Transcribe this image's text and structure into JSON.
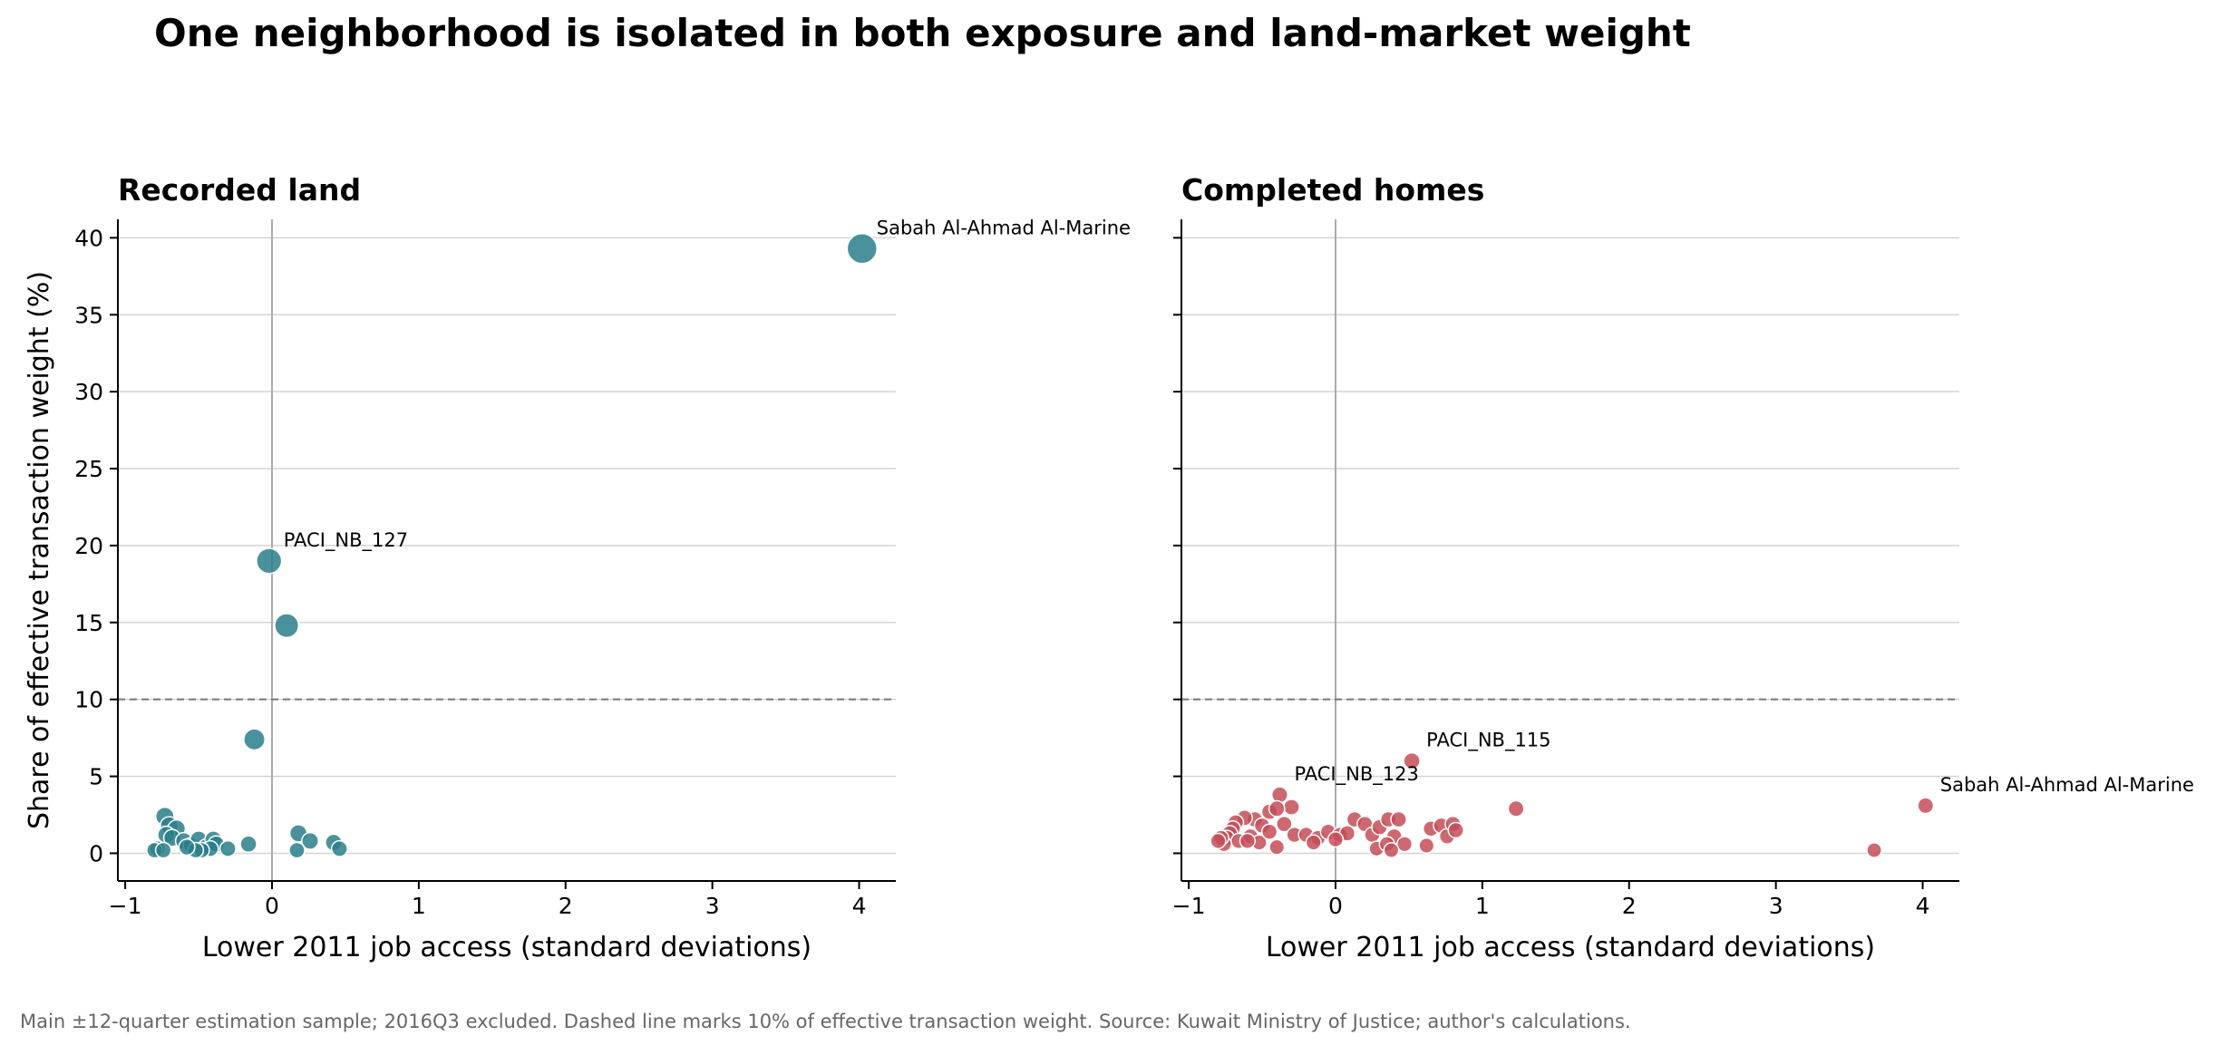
{
  "title": "One neighborhood is isolated in both exposure and land-market weight",
  "footnote": "Main ±12-quarter estimation sample; 2016Q3 excluded. Dashed line marks 10% of effective transaction weight. Source: Kuwait Ministry of Justice; author's calculations.",
  "ylabel": "Share of effective transaction weight (%)",
  "colors": {
    "land": "#2a7f8a",
    "homes": "#c44e58",
    "grid": "#d4d4d4",
    "zero_line": "#aaaaaa",
    "threshold": "#777777"
  },
  "chart_data": [
    {
      "type": "scatter",
      "title": "Recorded land",
      "xlabel": "Lower 2011 job access (standard deviations)",
      "ylabel": "Share of effective transaction weight (%)",
      "xlim": [
        -1.05,
        4.25
      ],
      "ylim": [
        -1.8,
        41.2
      ],
      "xticks": [
        -1,
        0,
        1,
        2,
        3,
        4
      ],
      "xtick_labels": [
        "−1",
        "0",
        "1",
        "2",
        "3",
        "4"
      ],
      "yticks": [
        0,
        5,
        10,
        15,
        20,
        25,
        30,
        35,
        40
      ],
      "ytick_labels": [
        "0",
        "5",
        "10",
        "15",
        "20",
        "25",
        "30",
        "35",
        "40"
      ],
      "grid": "horizontal",
      "threshold": 10,
      "points": [
        {
          "x": 4.02,
          "y": 39.3
        },
        {
          "x": -0.02,
          "y": 19.0
        },
        {
          "x": 0.1,
          "y": 14.8
        },
        {
          "x": -0.12,
          "y": 7.4
        },
        {
          "x": -0.73,
          "y": 2.4
        },
        {
          "x": -0.7,
          "y": 1.8
        },
        {
          "x": -0.65,
          "y": 1.6
        },
        {
          "x": -0.72,
          "y": 1.2
        },
        {
          "x": -0.68,
          "y": 1.0
        },
        {
          "x": -0.6,
          "y": 0.8
        },
        {
          "x": -0.55,
          "y": 0.5
        },
        {
          "x": -0.5,
          "y": 0.9
        },
        {
          "x": -0.45,
          "y": 0.4
        },
        {
          "x": -0.4,
          "y": 0.9
        },
        {
          "x": -0.38,
          "y": 0.6
        },
        {
          "x": -0.42,
          "y": 0.3
        },
        {
          "x": -0.48,
          "y": 0.2
        },
        {
          "x": -0.52,
          "y": 0.2
        },
        {
          "x": -0.58,
          "y": 0.4
        },
        {
          "x": -0.78,
          "y": 0.3
        },
        {
          "x": -0.8,
          "y": 0.2
        },
        {
          "x": -0.74,
          "y": 0.2
        },
        {
          "x": -0.3,
          "y": 0.3
        },
        {
          "x": -0.16,
          "y": 0.6
        },
        {
          "x": 0.18,
          "y": 1.3
        },
        {
          "x": 0.26,
          "y": 0.8
        },
        {
          "x": 0.17,
          "y": 0.2
        },
        {
          "x": 0.42,
          "y": 0.7
        },
        {
          "x": 0.46,
          "y": 0.3
        }
      ],
      "annotations": [
        {
          "label": "Sabah Al-Ahmad Al-Marine",
          "x": 4.02,
          "y": 39.3
        },
        {
          "label": "PACI_NB_127",
          "x": -0.02,
          "y": 19.0
        }
      ]
    },
    {
      "type": "scatter",
      "title": "Completed homes",
      "xlabel": "Lower 2011 job access (standard deviations)",
      "xlim": [
        -1.05,
        4.25
      ],
      "ylim": [
        -1.8,
        41.2
      ],
      "xticks": [
        -1,
        0,
        1,
        2,
        3,
        4
      ],
      "xtick_labels": [
        "−1",
        "0",
        "1",
        "2",
        "3",
        "4"
      ],
      "yticks": [
        0,
        5,
        10,
        15,
        20,
        25,
        30,
        35,
        40
      ],
      "grid": "horizontal",
      "threshold": 10,
      "points": [
        {
          "x": 0.52,
          "y": 6.0
        },
        {
          "x": -0.38,
          "y": 3.8
        },
        {
          "x": 4.02,
          "y": 3.1
        },
        {
          "x": 1.23,
          "y": 2.9
        },
        {
          "x": -0.3,
          "y": 3.0
        },
        {
          "x": -0.45,
          "y": 2.7
        },
        {
          "x": -0.4,
          "y": 2.9
        },
        {
          "x": -0.55,
          "y": 2.2
        },
        {
          "x": -0.5,
          "y": 1.8
        },
        {
          "x": -0.62,
          "y": 2.3
        },
        {
          "x": -0.68,
          "y": 2.0
        },
        {
          "x": -0.7,
          "y": 1.6
        },
        {
          "x": -0.72,
          "y": 1.3
        },
        {
          "x": -0.74,
          "y": 1.0
        },
        {
          "x": -0.76,
          "y": 0.6
        },
        {
          "x": -0.66,
          "y": 0.8
        },
        {
          "x": -0.58,
          "y": 1.1
        },
        {
          "x": -0.52,
          "y": 0.7
        },
        {
          "x": -0.45,
          "y": 1.4
        },
        {
          "x": -0.35,
          "y": 1.9
        },
        {
          "x": -0.28,
          "y": 1.2
        },
        {
          "x": -0.2,
          "y": 1.2
        },
        {
          "x": -0.12,
          "y": 1.0
        },
        {
          "x": -0.05,
          "y": 1.4
        },
        {
          "x": 0.03,
          "y": 1.2
        },
        {
          "x": 0.08,
          "y": 1.3
        },
        {
          "x": 0.13,
          "y": 2.2
        },
        {
          "x": 0.2,
          "y": 1.9
        },
        {
          "x": 0.25,
          "y": 1.2
        },
        {
          "x": 0.3,
          "y": 1.7
        },
        {
          "x": 0.36,
          "y": 2.2
        },
        {
          "x": 0.4,
          "y": 1.1
        },
        {
          "x": 0.43,
          "y": 2.2
        },
        {
          "x": 0.47,
          "y": 0.6
        },
        {
          "x": 0.28,
          "y": 0.3
        },
        {
          "x": 0.35,
          "y": 0.6
        },
        {
          "x": 0.38,
          "y": 0.2
        },
        {
          "x": 0.62,
          "y": 0.5
        },
        {
          "x": 0.65,
          "y": 1.6
        },
        {
          "x": 0.72,
          "y": 1.8
        },
        {
          "x": 0.76,
          "y": 1.1
        },
        {
          "x": 0.8,
          "y": 1.9
        },
        {
          "x": 0.82,
          "y": 1.5
        },
        {
          "x": -0.4,
          "y": 0.4
        },
        {
          "x": -0.15,
          "y": 0.7
        },
        {
          "x": 0.0,
          "y": 0.9
        },
        {
          "x": 3.67,
          "y": 0.2
        },
        {
          "x": -0.78,
          "y": 1.0
        },
        {
          "x": -0.8,
          "y": 0.8
        },
        {
          "x": -0.6,
          "y": 0.8
        }
      ],
      "annotations": [
        {
          "label": "PACI_NB_115",
          "x": 0.52,
          "y": 6.0
        },
        {
          "label": "PACI_NB_123",
          "x": -0.38,
          "y": 3.8
        },
        {
          "label": "Sabah Al-Ahmad Al-Marine",
          "x": 4.02,
          "y": 3.1
        }
      ]
    }
  ]
}
